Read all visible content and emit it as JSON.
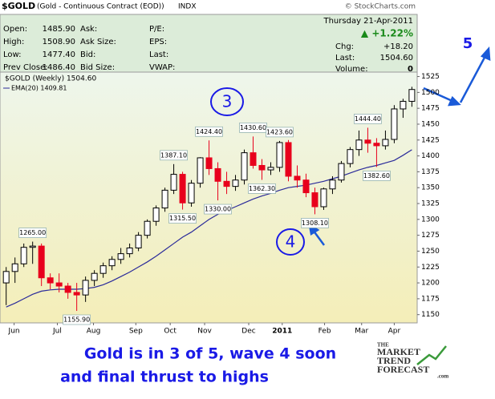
{
  "header": {
    "symbol": "$GOLD",
    "name": "(Gold - Continuous Contract (EOD))",
    "exchange": "INDX",
    "source": "© StockCharts.com",
    "fields": [
      [
        "Open:",
        "1485.90",
        "Ask:",
        "",
        "P/E:",
        ""
      ],
      [
        "High:",
        "1508.90",
        "Ask Size:",
        "",
        "EPS:",
        ""
      ],
      [
        "Low:",
        "1477.40",
        "Bid:",
        "",
        "Last:",
        ""
      ],
      [
        "Prev Close:",
        "1486.40",
        "Bid Size:",
        "",
        "VWAP:",
        ""
      ]
    ],
    "date": "Thursday  21-Apr-2011",
    "change_pct": "▲ +1.22%",
    "chg_label": "Chg:",
    "chg": "+18.20",
    "last_label": "Last:",
    "last": "1504.60",
    "volume_label": "Volume:",
    "volume": "0"
  },
  "chart_data": {
    "type": "candlestick",
    "legend": [
      "$GOLD (Weekly) 1504.60",
      "EMA(20) 1409.81"
    ],
    "ylim": [
      1137,
      1532
    ],
    "yticks": [
      1150,
      1175,
      1200,
      1225,
      1250,
      1275,
      1300,
      1325,
      1350,
      1375,
      1400,
      1425,
      1450,
      1475,
      1500,
      1525
    ],
    "xlim": [
      -0.7,
      46.6
    ],
    "xticks": [
      {
        "value": 0.9,
        "label": "Jun"
      },
      {
        "value": 5.8,
        "label": "Jul"
      },
      {
        "value": 9.9,
        "label": "Aug"
      },
      {
        "value": 14.7,
        "label": "Sep"
      },
      {
        "value": 18.6,
        "label": "Oct"
      },
      {
        "value": 22.5,
        "label": "Nov"
      },
      {
        "value": 27.5,
        "label": "Dec"
      },
      {
        "value": 31.3,
        "label": "2011"
      },
      {
        "value": 36.1,
        "label": "Feb"
      },
      {
        "value": 40.3,
        "label": "Mar"
      },
      {
        "value": 44,
        "label": "Apr"
      }
    ],
    "up_color": "#000000",
    "down_color": "#e8001c",
    "ema_color": "#2b2b9a",
    "open": [
      1200,
      1218,
      1230,
      1256,
      1258,
      1208,
      1200,
      1195,
      1185,
      1181,
      1204,
      1215,
      1227,
      1237,
      1246,
      1255,
      1275,
      1297,
      1318,
      1346,
      1371,
      1326,
      1357,
      1397,
      1380,
      1360,
      1352,
      1362,
      1405,
      1385,
      1378,
      1382,
      1421,
      1368,
      1362,
      1342,
      1320,
      1348,
      1362,
      1388,
      1410,
      1425,
      1420,
      1416,
      1426,
      1474,
      1486
    ],
    "high": [
      1225,
      1240,
      1262,
      1265,
      1262,
      1215,
      1215,
      1200,
      1200,
      1210,
      1220,
      1232,
      1242,
      1255,
      1262,
      1280,
      1300,
      1322,
      1350,
      1387.1,
      1375,
      1362,
      1398,
      1424.4,
      1390,
      1375,
      1370,
      1410,
      1430.6,
      1395,
      1390,
      1423.6,
      1425,
      1385,
      1372,
      1350,
      1350,
      1368,
      1392,
      1414,
      1440,
      1444.4,
      1428,
      1440,
      1480,
      1490,
      1508.9
    ],
    "low": [
      1165,
      1200,
      1225,
      1230,
      1195,
      1190,
      1185,
      1175,
      1155.9,
      1170,
      1195,
      1208,
      1220,
      1230,
      1240,
      1250,
      1270,
      1290,
      1312,
      1340,
      1315.5,
      1320,
      1350,
      1370,
      1330,
      1340,
      1345,
      1355,
      1380,
      1362.3,
      1370,
      1375,
      1360,
      1350,
      1335,
      1308.1,
      1315,
      1340,
      1358,
      1382,
      1400,
      1405,
      1382.6,
      1410,
      1420,
      1460,
      1477.4
    ],
    "close": [
      1218,
      1230,
      1256,
      1258,
      1208,
      1200,
      1195,
      1185,
      1181,
      1204,
      1215,
      1227,
      1237,
      1246,
      1255,
      1275,
      1297,
      1318,
      1346,
      1371,
      1326,
      1357,
      1397,
      1380,
      1360,
      1352,
      1362,
      1405,
      1385,
      1378,
      1382,
      1421,
      1368,
      1362,
      1342,
      1320,
      1348,
      1362,
      1388,
      1410,
      1425,
      1420,
      1416,
      1426,
      1474,
      1486,
      1504.6
    ],
    "high_labels": [
      null,
      null,
      null,
      "1265.00",
      null,
      null,
      null,
      null,
      null,
      null,
      null,
      null,
      null,
      null,
      null,
      null,
      null,
      null,
      null,
      "1387.10",
      null,
      null,
      null,
      "1424.40",
      null,
      null,
      null,
      null,
      "1430.60",
      null,
      null,
      "1423.60",
      null,
      null,
      null,
      null,
      null,
      null,
      null,
      null,
      null,
      "1444.40",
      null,
      null,
      null,
      null,
      null
    ],
    "low_labels": [
      null,
      null,
      null,
      null,
      null,
      null,
      null,
      null,
      "1155.90",
      null,
      null,
      null,
      null,
      null,
      null,
      null,
      null,
      null,
      null,
      null,
      "1315.50",
      null,
      null,
      null,
      "1330.00",
      null,
      null,
      null,
      null,
      "1362.30",
      null,
      null,
      null,
      null,
      null,
      "1308.10",
      null,
      null,
      null,
      null,
      null,
      null,
      "1382.60",
      null,
      null,
      null,
      null
    ],
    "ema": [
      1162,
      1168,
      1175,
      1182,
      1187,
      1189,
      1190,
      1190,
      1190,
      1191,
      1193,
      1197,
      1203,
      1210,
      1217,
      1225,
      1233,
      1242,
      1252,
      1262,
      1272,
      1280,
      1290,
      1300,
      1308,
      1314,
      1320,
      1326,
      1332,
      1337,
      1341,
      1346,
      1350,
      1352,
      1354,
      1357,
      1360,
      1364,
      1368,
      1373,
      1378,
      1382,
      1385,
      1389,
      1393,
      1401,
      1409.81
    ]
  },
  "annotations": {
    "wave3": "3",
    "wave4": "4",
    "wave5": "5"
  },
  "caption": [
    "Gold is in 3 of 5, wave 4 soon",
    "and final thrust to highs"
  ],
  "logo": {
    "the": "THE",
    "line1": "MARKET",
    "line2": "TREND",
    "line3": "FORECAST",
    ".com": ".com"
  }
}
